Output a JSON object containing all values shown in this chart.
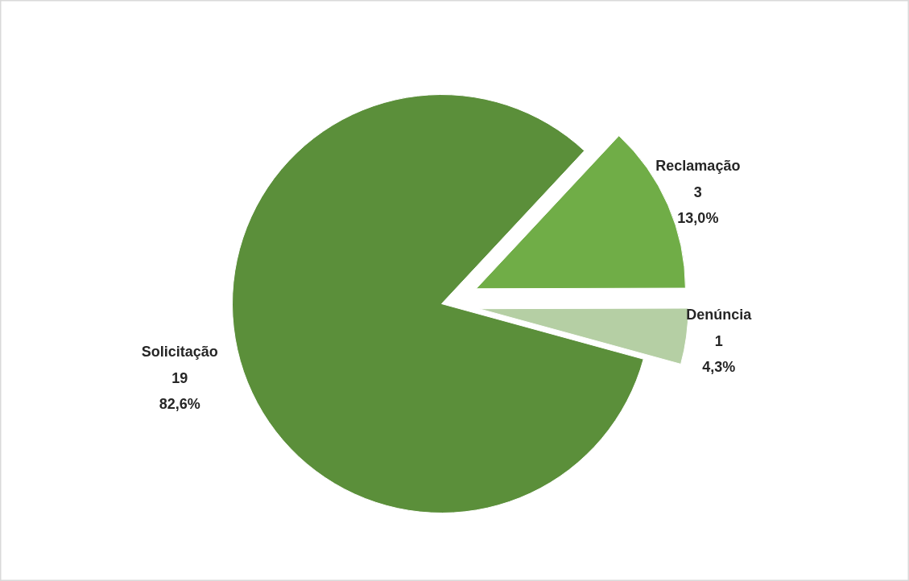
{
  "chart_data": {
    "type": "pie",
    "categories": [
      "Reclamação",
      "Denúncia",
      "Solicitação"
    ],
    "values": [
      13.0,
      4.3,
      82.6
    ],
    "colors": [
      "#70ad47",
      "#b5cfa4",
      "#5b8f3a"
    ],
    "data_labels": true,
    "value_labels": [
      "3\n13,0%",
      "1\n4,3%",
      "19\n82,6%"
    ],
    "legend": false
  }
}
